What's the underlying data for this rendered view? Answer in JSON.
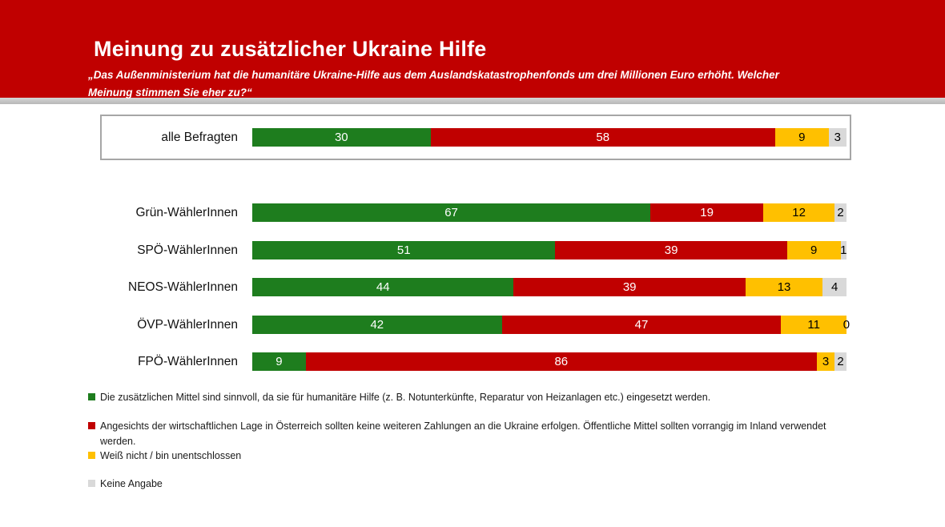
{
  "header": {
    "title": "Meinung zu zusätzlicher Ukraine Hilfe",
    "subtitle": "„Das Außenministerium hat die humanitäre Ukraine-Hilfe aus dem Auslandskatastrophenfonds um drei Millionen Euro erhöht. Welcher Meinung stimmen Sie eher zu?“",
    "background_color": "#C00000",
    "text_color": "#FFFFFF"
  },
  "chart_data": {
    "type": "bar",
    "stacked": true,
    "orientation": "horizontal",
    "unit": "percent",
    "xlim": [
      0,
      100
    ],
    "grid": false,
    "legend_position": "bottom-left",
    "highlighted_category": "alle Befragten",
    "categories": [
      "alle Befragten",
      "Grün-WählerInnen",
      "SPÖ-WählerInnen",
      "NEOS-WählerInnen",
      "ÖVP-WählerInnen",
      "FPÖ-WählerInnen"
    ],
    "series": [
      {
        "key": "sinnvoll",
        "name": "Die zusätzlichen Mittel sind sinnvoll, da sie für humanitäre Hilfe (z. B. Notunterkünfte, Reparatur von Heizanlagen etc.) eingesetzt werden.",
        "color": "#1E7D1E",
        "text_color": "#FFFFFF",
        "values": [
          30,
          67,
          51,
          44,
          42,
          9
        ]
      },
      {
        "key": "keine-zahlungen",
        "name": "Angesichts der wirtschaftlichen Lage in Österreich sollten keine weiteren Zahlungen an die Ukraine erfolgen. Öffentliche Mittel sollten vorrangig im Inland verwendet werden.",
        "color": "#C00000",
        "text_color": "#FFFFFF",
        "values": [
          58,
          19,
          39,
          39,
          47,
          86
        ]
      },
      {
        "key": "weiss-nicht",
        "name": "Weiß nicht / bin unentschlossen",
        "color": "#FFC000",
        "text_color": "#000000",
        "values": [
          9,
          12,
          9,
          13,
          11,
          3
        ]
      },
      {
        "key": "keine-angabe",
        "name": "Keine Angabe",
        "color": "#D9D9D9",
        "text_color": "#000000",
        "values": [
          3,
          2,
          1,
          4,
          0,
          2
        ]
      }
    ]
  }
}
